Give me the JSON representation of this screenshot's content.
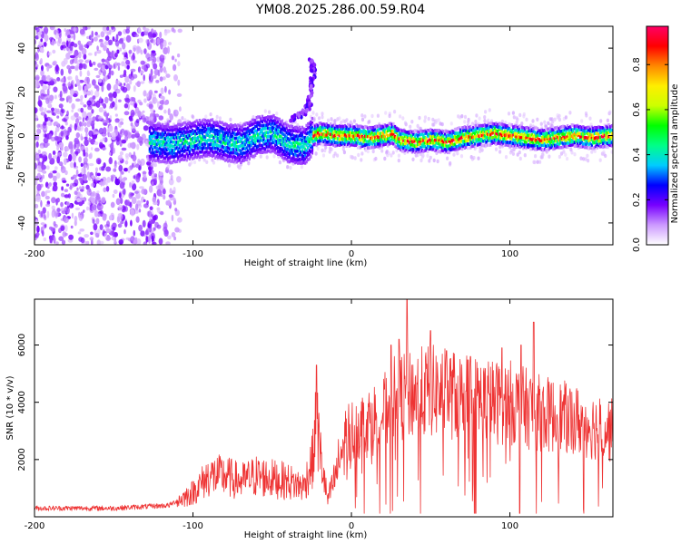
{
  "title": "YM08.2025.286.00.59.R04",
  "chart_data": [
    {
      "type": "heatmap",
      "xlabel": "Height of straight line (km)",
      "ylabel": "Frequency (Hz)",
      "xlim": [
        -200,
        165
      ],
      "ylim": [
        -50,
        50
      ],
      "xticks": [
        {
          "value": -200,
          "label": "-200"
        },
        {
          "value": -100,
          "label": "-100"
        },
        {
          "value": 0,
          "label": "0"
        },
        {
          "value": 100,
          "label": "100"
        }
      ],
      "yticks": [
        {
          "value": -40,
          "label": "-40"
        },
        {
          "value": -20,
          "label": "-20"
        },
        {
          "value": 0,
          "label": "0"
        },
        {
          "value": 20,
          "label": "20"
        },
        {
          "value": 40,
          "label": "40"
        }
      ],
      "colorbar": {
        "label": "Normalized spectral amplitude",
        "range": [
          0,
          0.97
        ],
        "ticks": [
          {
            "value": 0.0,
            "label": "0.0"
          },
          {
            "value": 0.2,
            "label": "0.2"
          },
          {
            "value": 0.4,
            "label": "0.4"
          },
          {
            "value": 0.6,
            "label": "0.6"
          },
          {
            "value": 0.8,
            "label": "0.8"
          }
        ],
        "colors": [
          "#ffffff",
          "#cc99ff",
          "#7700ff",
          "#0000ff",
          "#00ccff",
          "#00ff88",
          "#00ff00",
          "#ccff00",
          "#ffee00",
          "#ff8800",
          "#ff0000",
          "#ff0066"
        ]
      },
      "features": {
        "noise_region": [
          -200,
          -108
        ],
        "center_track": [
          [
            -125,
            -3
          ],
          [
            -115,
            -4
          ],
          [
            -100,
            -2
          ],
          [
            -90,
            -1
          ],
          [
            -80,
            -3
          ],
          [
            -70,
            -4
          ],
          [
            -60,
            0
          ],
          [
            -50,
            1
          ],
          [
            -40,
            -4
          ],
          [
            -30,
            -5
          ],
          [
            -25,
            0
          ],
          [
            -20,
            1
          ],
          [
            -10,
            0
          ],
          [
            0,
            0
          ],
          [
            10,
            -1
          ],
          [
            20,
            0
          ],
          [
            25,
            1
          ],
          [
            30,
            -2
          ],
          [
            40,
            -3
          ],
          [
            50,
            -2
          ],
          [
            60,
            -3
          ],
          [
            70,
            -1
          ],
          [
            80,
            0
          ],
          [
            90,
            1
          ],
          [
            100,
            0
          ],
          [
            110,
            -1
          ],
          [
            120,
            -2
          ],
          [
            130,
            -1
          ],
          [
            140,
            0
          ],
          [
            150,
            -1
          ],
          [
            165,
            0
          ]
        ],
        "rising_feature": [
          [
            -40,
            7
          ],
          [
            -30,
            10
          ],
          [
            -26,
            16
          ],
          [
            -25,
            24
          ],
          [
            -24,
            30
          ],
          [
            -26,
            36
          ]
        ]
      }
    },
    {
      "type": "line",
      "xlabel": "Height of straight line (km)",
      "ylabel": "SNR (10 * v/v)",
      "xlim": [
        -200,
        165
      ],
      "ylim": [
        0,
        7600
      ],
      "xticks": [
        {
          "value": -200,
          "label": "-200"
        },
        {
          "value": -100,
          "label": "-100"
        },
        {
          "value": 0,
          "label": "0"
        },
        {
          "value": 100,
          "label": "100"
        }
      ],
      "yticks": [
        {
          "value": 2000,
          "label": "2000"
        },
        {
          "value": 4000,
          "label": "4000"
        },
        {
          "value": 6000,
          "label": "6000"
        }
      ],
      "series": [
        {
          "name": "SNR",
          "color": "#ee3333",
          "envelope": [
            [
              -200,
              300
            ],
            [
              -150,
              300
            ],
            [
              -115,
              400
            ],
            [
              -100,
              900
            ],
            [
              -90,
              1500
            ],
            [
              -80,
              1500
            ],
            [
              -70,
              1300
            ],
            [
              -60,
              1500
            ],
            [
              -50,
              1400
            ],
            [
              -40,
              1300
            ],
            [
              -30,
              1100
            ],
            [
              -24,
              2200
            ],
            [
              -22,
              3600
            ],
            [
              -20,
              2400
            ],
            [
              -15,
              600
            ],
            [
              -10,
              1500
            ],
            [
              -5,
              2700
            ],
            [
              0,
              3000
            ],
            [
              10,
              3300
            ],
            [
              20,
              3600
            ],
            [
              25,
              4000
            ],
            [
              30,
              4200
            ],
            [
              40,
              4300
            ],
            [
              50,
              4400
            ],
            [
              60,
              4300
            ],
            [
              70,
              4200
            ],
            [
              80,
              4100
            ],
            [
              90,
              4000
            ],
            [
              100,
              4000
            ],
            [
              110,
              3800
            ],
            [
              120,
              3600
            ],
            [
              130,
              3500
            ],
            [
              140,
              3400
            ],
            [
              150,
              3200
            ],
            [
              165,
              3000
            ]
          ],
          "peaks": [
            [
              -22,
              5300
            ],
            [
              25,
              6000
            ],
            [
              30,
              6200
            ],
            [
              35,
              7600
            ],
            [
              50,
              6500
            ],
            [
              60,
              5800
            ],
            [
              75,
              5600
            ],
            [
              95,
              5900
            ],
            [
              107,
              6000
            ],
            [
              115,
              6800
            ]
          ]
        }
      ]
    }
  ]
}
